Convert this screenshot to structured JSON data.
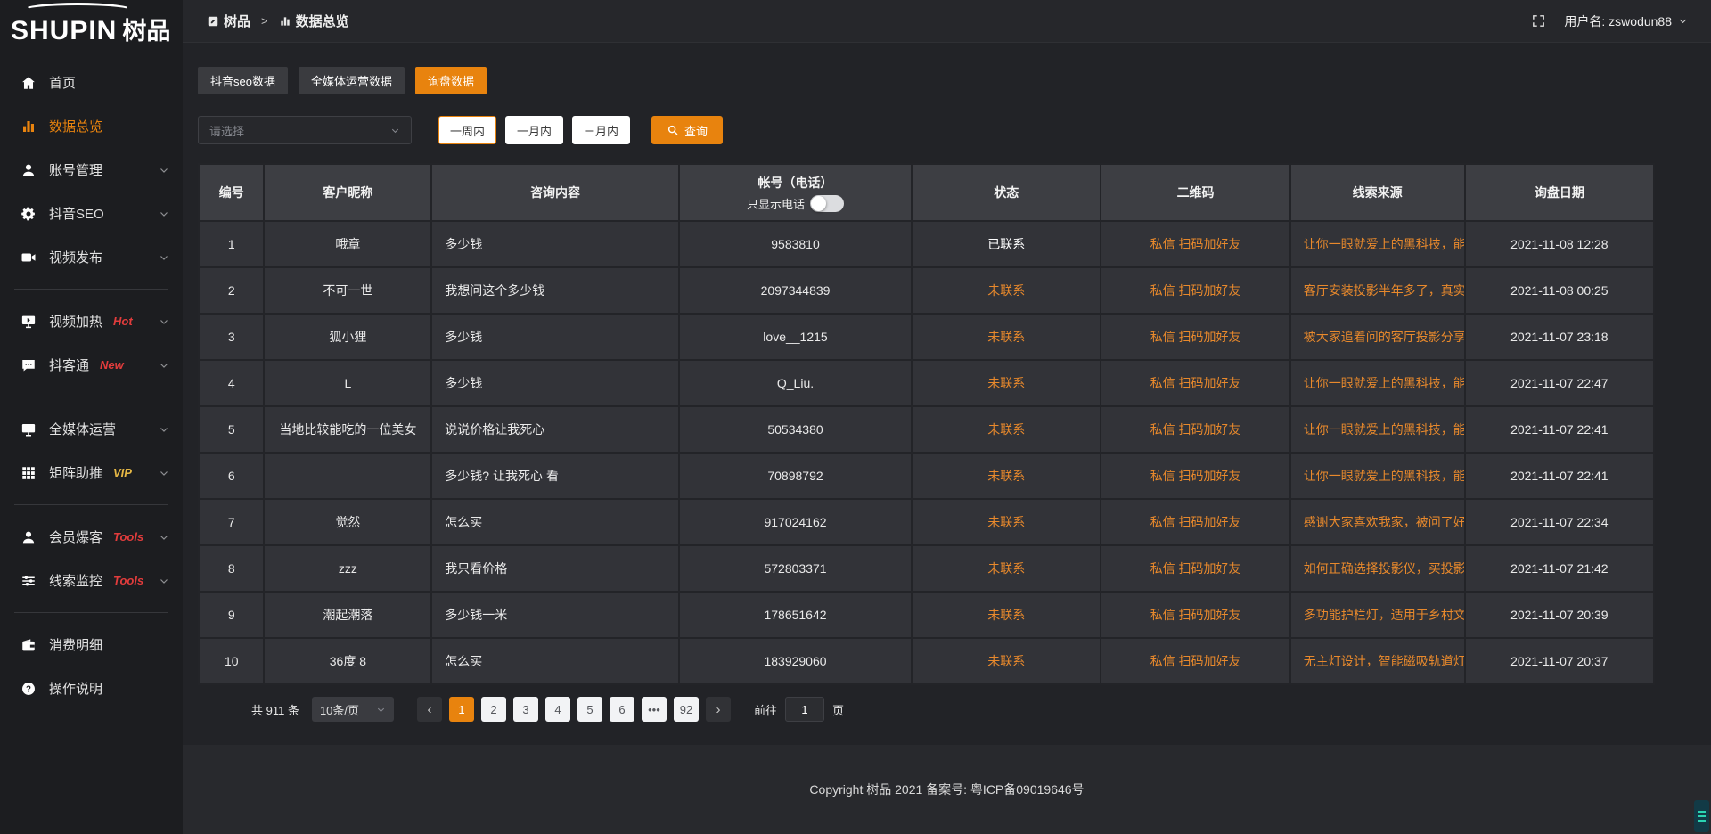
{
  "app": {
    "brand_en": "SHUPIN",
    "brand_cn": "树品"
  },
  "topbar": {
    "breadcrumb_home": "树品",
    "breadcrumb_separator": ">",
    "breadcrumb_current": "数据总览",
    "username": "用户名: zswodun88"
  },
  "sidebar": {
    "items": [
      {
        "key": "home",
        "icon": "home",
        "label": "首页",
        "active": false,
        "expandable": false
      },
      {
        "key": "data-overview",
        "icon": "bar-chart",
        "label": "数据总览",
        "active": true,
        "expandable": false
      },
      {
        "key": "account-management",
        "icon": "user",
        "label": "账号管理",
        "expandable": true
      },
      {
        "key": "douyin-seo",
        "icon": "gear",
        "label": "抖音SEO",
        "expandable": true
      },
      {
        "key": "video-publish",
        "icon": "video-camera",
        "label": "视频发布",
        "expandable": true
      },
      {
        "type": "divider"
      },
      {
        "key": "video-heat",
        "icon": "monitor-play",
        "label": "视频加热",
        "badge": "Hot",
        "badge_color": "#e13c3c",
        "expandable": true
      },
      {
        "key": "douketong",
        "icon": "chat",
        "label": "抖客通",
        "badge": "New",
        "badge_color": "#e13c3c",
        "expandable": true
      },
      {
        "type": "divider"
      },
      {
        "key": "media-operation",
        "icon": "monitor",
        "label": "全媒体运营",
        "expandable": true
      },
      {
        "key": "matrix-boost",
        "icon": "grid",
        "label": "矩阵助推",
        "badge": "VIP",
        "badge_color": "#e6b845",
        "expandable": true
      },
      {
        "type": "divider"
      },
      {
        "key": "member-baoke",
        "icon": "person",
        "label": "会员爆客",
        "badge": "Tools",
        "badge_color": "#e13c3c",
        "expandable": true
      },
      {
        "key": "lead-monitor",
        "icon": "sliders",
        "label": "线索监控",
        "badge": "Tools",
        "badge_color": "#e13c3c",
        "expandable": true
      },
      {
        "type": "divider"
      },
      {
        "key": "consumption-detail",
        "icon": "wallet",
        "label": "消费明细",
        "expandable": false
      },
      {
        "key": "operation-guide",
        "icon": "question",
        "label": "操作说明",
        "expandable": false
      }
    ]
  },
  "tabs": [
    {
      "key": "douyin-seo-data",
      "label": "抖音seo数据",
      "active": false
    },
    {
      "key": "media-operation-data",
      "label": "全媒体运营数据",
      "active": false
    },
    {
      "key": "inquiry-data",
      "label": "询盘数据",
      "active": true
    }
  ],
  "filters": {
    "select_placeholder": "请选择",
    "ranges": [
      {
        "key": "one-week",
        "label": "一周内",
        "active": true
      },
      {
        "key": "one-month",
        "label": "一月内",
        "active": false
      },
      {
        "key": "three-months",
        "label": "三月内",
        "active": false
      }
    ],
    "search_label": "查询"
  },
  "table": {
    "columns": [
      "编号",
      "客户昵称",
      "咨询内容",
      "帐号（电话）",
      "状态",
      "二维码",
      "线索来源",
      "询盘日期"
    ],
    "phone_toggle_label": "只显示电话",
    "phone_toggle_on": false,
    "rows": [
      {
        "no": "1",
        "nickname": "哦章",
        "content": "多少钱",
        "account": "9583810",
        "status": "已联系",
        "contacted": true,
        "qrcode": "私信 扫码加好友",
        "source": "让你一眼就爱上的黑科技，能...",
        "date": "2021-11-08 12:28"
      },
      {
        "no": "2",
        "nickname": "不可一世",
        "content": "我想问这个多少钱",
        "account": "2097344839",
        "status": "未联系",
        "contacted": false,
        "qrcode": "私信 扫码加好友",
        "source": "客厅安装投影半年多了，真实...",
        "date": "2021-11-08 00:25"
      },
      {
        "no": "3",
        "nickname": "狐小狸",
        "content": "多少钱",
        "account": "love__1215",
        "status": "未联系",
        "contacted": false,
        "qrcode": "私信 扫码加好友",
        "source": "被大家追着问的客厅投影分享...",
        "date": "2021-11-07 23:18"
      },
      {
        "no": "4",
        "nickname": "L",
        "content": "多少钱",
        "account": "Q_Liu.",
        "status": "未联系",
        "contacted": false,
        "qrcode": "私信 扫码加好友",
        "source": "让你一眼就爱上的黑科技，能...",
        "date": "2021-11-07 22:47"
      },
      {
        "no": "5",
        "nickname": "当地比较能吃的一位美女",
        "content": "说说价格让我死心",
        "account": "50534380",
        "status": "未联系",
        "contacted": false,
        "qrcode": "私信 扫码加好友",
        "source": "让你一眼就爱上的黑科技，能...",
        "date": "2021-11-07 22:41"
      },
      {
        "no": "6",
        "nickname": "",
        "content": "多少钱? 让我死心 看",
        "account": "70898792",
        "status": "未联系",
        "contacted": false,
        "qrcode": "私信 扫码加好友",
        "source": "让你一眼就爱上的黑科技，能...",
        "date": "2021-11-07 22:41"
      },
      {
        "no": "7",
        "nickname": "觉然",
        "content": "怎么买",
        "account": "917024162",
        "status": "未联系",
        "contacted": false,
        "qrcode": "私信 扫码加好友",
        "source": "感谢大家喜欢我家，被问了好...",
        "date": "2021-11-07 22:34"
      },
      {
        "no": "8",
        "nickname": "zzz",
        "content": "我只看价格",
        "account": "572803371",
        "status": "未联系",
        "contacted": false,
        "qrcode": "私信 扫码加好友",
        "source": "如何正确选择投影仪，买投影...",
        "date": "2021-11-07 21:42"
      },
      {
        "no": "9",
        "nickname": "潮起潮落",
        "content": "多少钱一米",
        "account": "178651642",
        "status": "未联系",
        "contacted": false,
        "qrcode": "私信 扫码加好友",
        "source": "多功能护栏灯，适用于乡村文...",
        "date": "2021-11-07 20:39"
      },
      {
        "no": "10",
        "nickname": "36度 8",
        "content": "怎么买",
        "account": "183929060",
        "status": "未联系",
        "contacted": false,
        "qrcode": "私信 扫码加好友",
        "source": "无主灯设计，智能磁吸轨道灯...",
        "date": "2021-11-07 20:37"
      }
    ]
  },
  "pagination": {
    "total": "共 911 条",
    "page_size": "10条/页",
    "prev": "‹",
    "next": "›",
    "pages": [
      "1",
      "2",
      "3",
      "4",
      "5",
      "6",
      "•••",
      "92"
    ],
    "active_page": "1",
    "goto_label": "前往",
    "goto_value": "1",
    "goto_unit": "页"
  },
  "footer": {
    "copyright": "Copyright 树品 2021 备案号: 粤ICP备09019646号"
  },
  "colors": {
    "accent": "#e8830e",
    "link_orange": "#e8892c",
    "badge_red": "#e13c3c",
    "badge_gold": "#e6b845",
    "status_contacted": "#ffffff",
    "status_uncontacted": "#e8892c"
  }
}
